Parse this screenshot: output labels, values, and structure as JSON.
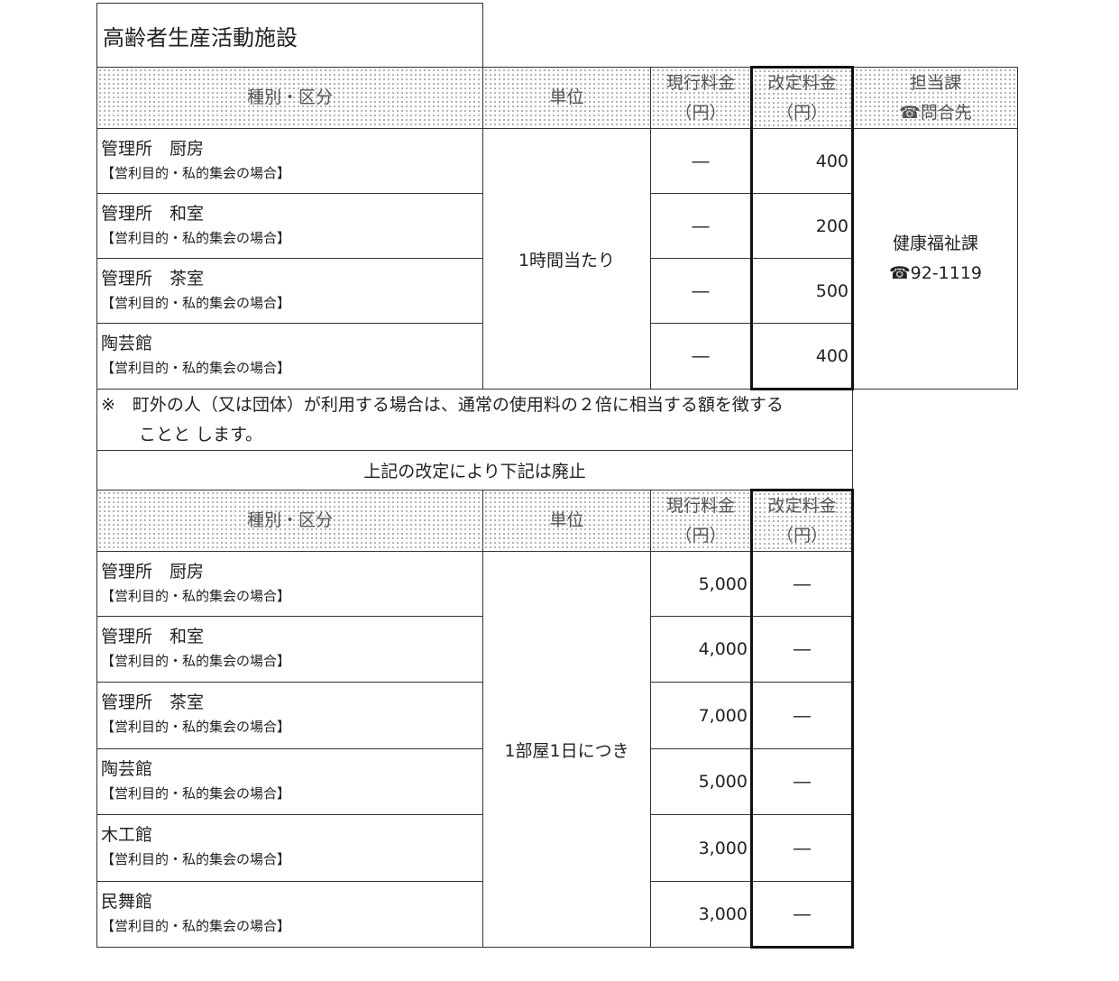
{
  "title": "高齢者生産活動施設",
  "headers": {
    "category": "種別・区分",
    "unit": "単位",
    "current_l1": "現行料金",
    "current_l2": "（円）",
    "revised_l1": "改定料金",
    "revised_l2": "（円）",
    "dept_l1": "担当課",
    "dept_l2": "☎問合先"
  },
  "purpose": "【営利目的・私的集会の場合】",
  "section1": {
    "unit": "1時間当たり",
    "rows": [
      {
        "name": "管理所　厨房",
        "current": "―",
        "revised": "400"
      },
      {
        "name": "管理所　和室",
        "current": "―",
        "revised": "200"
      },
      {
        "name": "管理所　茶室",
        "current": "―",
        "revised": "500"
      },
      {
        "name": "陶芸館",
        "current": "―",
        "revised": "400"
      }
    ]
  },
  "note_l1": "※　町外の人（又は団体）が利用する場合は、通常の使用料の２倍に相当する額を徴する",
  "note_l2": "ことと します。",
  "abolition": "上記の改定により下記は廃止",
  "section2": {
    "unit": "1部屋1日につき",
    "rows": [
      {
        "name": "管理所　厨房",
        "current": "5,000",
        "revised": "―"
      },
      {
        "name": "管理所　和室",
        "current": "4,000",
        "revised": "―"
      },
      {
        "name": "管理所　茶室",
        "current": "7,000",
        "revised": "―"
      },
      {
        "name": "陶芸館",
        "current": "5,000",
        "revised": "―"
      },
      {
        "name": "木工館",
        "current": "3,000",
        "revised": "―"
      },
      {
        "name": "民舞館",
        "current": "3,000",
        "revised": "―"
      }
    ]
  },
  "dept": {
    "name": "健康福祉課",
    "phone": "☎92-1119"
  }
}
